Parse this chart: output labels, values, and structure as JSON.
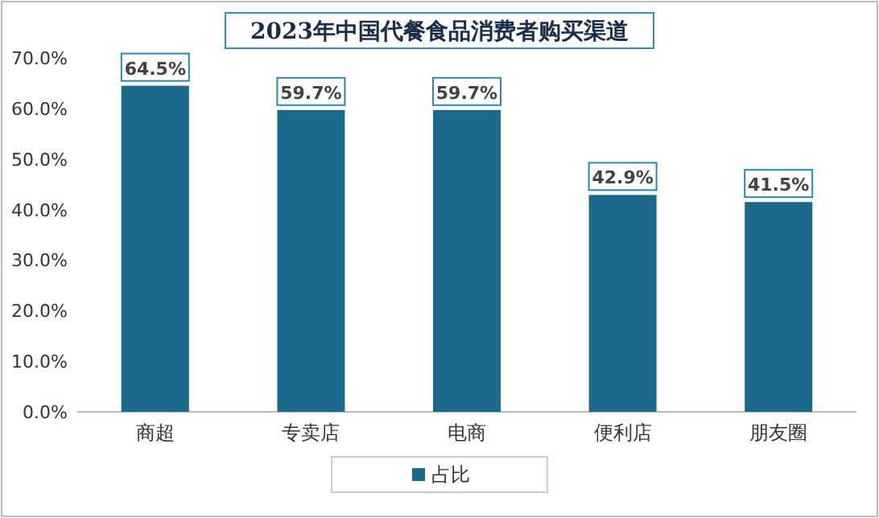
{
  "chart_data": {
    "type": "bar",
    "title": "2023年中国代餐食品消费者购买渠道",
    "categories": [
      "商超",
      "专卖店",
      "电商",
      "便利店",
      "朋友圈"
    ],
    "series": [
      {
        "name": "占比",
        "color": "#1b6a8c",
        "values": [
          64.5,
          59.7,
          59.7,
          42.9,
          41.5
        ],
        "value_labels": [
          "64.5%",
          "59.7%",
          "59.7%",
          "42.9%",
          "41.5%"
        ]
      }
    ],
    "ylim": [
      0,
      70
    ],
    "yticks": [
      {
        "value": 0,
        "label": "0.0%"
      },
      {
        "value": 10,
        "label": "10.0%"
      },
      {
        "value": 20,
        "label": "20.0%"
      },
      {
        "value": 30,
        "label": "30.0%"
      },
      {
        "value": 40,
        "label": "40.0%"
      },
      {
        "value": 50,
        "label": "50.0%"
      },
      {
        "value": 60,
        "label": "60.0%"
      },
      {
        "value": 70,
        "label": "70.0%"
      }
    ],
    "legend": "bottom"
  }
}
